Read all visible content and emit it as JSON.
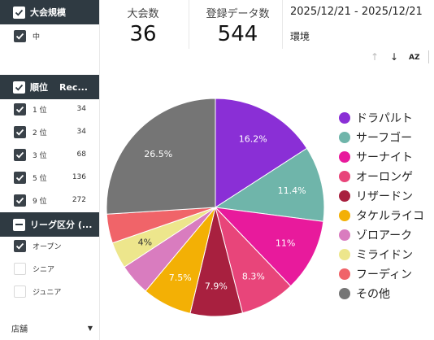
{
  "sidebar": {
    "tournament_scale": {
      "title": "大会規模",
      "items": [
        {
          "label": "中",
          "checked": true
        }
      ]
    },
    "rank": {
      "title": "順位",
      "col2": "Rec...",
      "items": [
        {
          "label": "1 位",
          "value": "34",
          "checked": true
        },
        {
          "label": "2 位",
          "value": "34",
          "checked": true
        },
        {
          "label": "3 位",
          "value": "68",
          "checked": true
        },
        {
          "label": "5 位",
          "value": "136",
          "checked": true
        },
        {
          "label": "9 位",
          "value": "272",
          "checked": true
        }
      ]
    },
    "league": {
      "title": "リーグ区分 (...",
      "items": [
        {
          "label": "オープン",
          "checked": true
        },
        {
          "label": "シニア",
          "checked": false
        },
        {
          "label": "ジュニア",
          "checked": false
        }
      ]
    },
    "store": {
      "label": "店舗"
    }
  },
  "stats": [
    {
      "label": "大会数",
      "value": "36"
    },
    {
      "label": "登録データ数",
      "value": "544"
    }
  ],
  "date_range": "2025/12/21 - 2025/12/21",
  "environment_label": "環境",
  "toolbar": {
    "sort_up": "↑",
    "sort_down": "↓",
    "sort_az": "AZ"
  },
  "chart_data": {
    "type": "pie",
    "start_angle_deg": 0,
    "direction": "clockwise",
    "legend_position": "right",
    "slices": [
      {
        "label": "ドラパルト",
        "value": 16.2,
        "display": "16.2%",
        "color": "#8a2fd6"
      },
      {
        "label": "サーフゴー",
        "value": 11.4,
        "display": "11.4%",
        "color": "#6fb5aa"
      },
      {
        "label": "サーナイト",
        "value": 11.0,
        "display": "11%",
        "color": "#e81a9c"
      },
      {
        "label": "オーロンゲ",
        "value": 8.3,
        "display": "8.3%",
        "color": "#e8457a"
      },
      {
        "label": "リザードン",
        "value": 7.9,
        "display": "7.9%",
        "color": "#a8203f"
      },
      {
        "label": "タケルライコ",
        "value": 7.5,
        "display": "7.5%",
        "color": "#f3b005"
      },
      {
        "label": "ゾロアーク",
        "value": 4.8,
        "display": "",
        "color": "#d97cbf"
      },
      {
        "label": "ミライドン",
        "value": 4.0,
        "display": "4%",
        "color": "#ede68c"
      },
      {
        "label": "フーディン",
        "value": 4.4,
        "display": "",
        "color": "#f06469"
      },
      {
        "label": "その他",
        "value": 26.5,
        "display": "26.5%",
        "color": "#757575"
      }
    ],
    "label_colors": {
      "dark_slice": "#ffffff",
      "light_slice": "#333333"
    }
  }
}
